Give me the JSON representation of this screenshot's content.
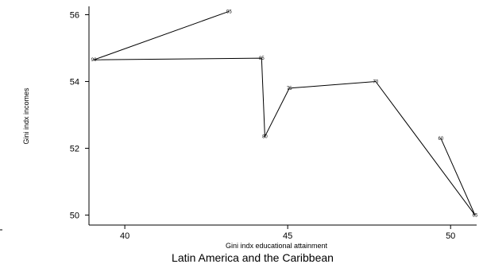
{
  "chart_data": {
    "type": "line",
    "xlabel": "Gini indx educational attainment",
    "ylabel": "Gini indx incomes",
    "caption": "Latin America and the Caribbean",
    "xlim": [
      38.9,
      50.8
    ],
    "ylim": [
      49.7,
      56.25
    ],
    "xticks": [
      40,
      45,
      50
    ],
    "yticks": [
      50,
      52,
      54,
      56
    ],
    "grid": false,
    "points": [
      {
        "label": "60",
        "x": 49.7,
        "y": 52.3
      },
      {
        "label": "65",
        "x": 50.75,
        "y": 50.0
      },
      {
        "label": "70",
        "x": 47.7,
        "y": 54.0
      },
      {
        "label": "75",
        "x": 45.05,
        "y": 53.8
      },
      {
        "label": "80",
        "x": 44.3,
        "y": 52.35
      },
      {
        "label": "85",
        "x": 44.2,
        "y": 54.7
      },
      {
        "label": "90",
        "x": 39.05,
        "y": 54.65
      },
      {
        "label": "95",
        "x": 43.2,
        "y": 56.1
      }
    ]
  }
}
